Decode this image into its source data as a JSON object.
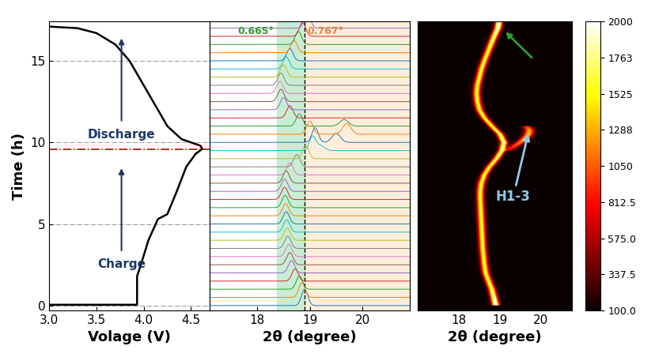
{
  "chart_data": [
    {
      "type": "line",
      "x_label": "Volage (V)",
      "y_label": "Time (h)",
      "x": [
        3.0,
        3.93,
        3.93,
        3.97,
        4.05,
        4.15,
        4.25,
        4.35,
        4.45,
        4.55,
        4.62,
        4.6,
        4.5,
        4.4,
        4.25,
        4.1,
        4.0,
        3.85,
        3.7,
        3.5,
        3.3,
        3.0
      ],
      "y": [
        0.05,
        0.05,
        1.8,
        2.5,
        4.0,
        5.3,
        5.6,
        7.0,
        8.5,
        9.3,
        9.6,
        9.8,
        10.0,
        10.2,
        11.0,
        12.5,
        13.5,
        15.0,
        16.0,
        16.7,
        17.0,
        17.1
      ],
      "color": "#000000",
      "xlim": [
        3.0,
        4.7
      ],
      "xticks": [
        3.0,
        3.5,
        4.0,
        4.5
      ],
      "ylim": [
        -0.3,
        17.4
      ],
      "yticks": [
        0,
        5,
        10,
        15
      ],
      "grid": true,
      "switch_time": 9.6,
      "annotations": [
        {
          "text": "Charge",
          "color": "#1f3864"
        },
        {
          "text": "Discharge",
          "color": "#1f3864"
        }
      ]
    },
    {
      "type": "waterfall",
      "x_label": "2θ (degree)",
      "xlim": [
        17.1,
        20.9
      ],
      "xticks": [
        18,
        19,
        20
      ],
      "ylim": [
        -0.3,
        17.4
      ],
      "tick_labels": "x",
      "reference_position": 18.9,
      "bands": [
        {
          "range": [
            18.37,
            18.9
          ],
          "color": "#c8ecd4",
          "label": "0.665°",
          "label_color": "#2ca02c"
        },
        {
          "range": [
            18.9,
            20.9
          ],
          "color": "#fdeedc",
          "label": "0.767°",
          "label_color": "#e08a3c"
        }
      ],
      "scans": {
        "time": [
          0,
          0.5,
          1,
          1.5,
          2,
          2.5,
          3,
          3.5,
          4,
          4.5,
          5,
          5.5,
          6,
          6.5,
          7,
          7.5,
          8,
          8.5,
          9,
          9.5,
          10,
          10.5,
          11,
          11.5,
          12,
          12.5,
          13,
          13.5,
          14,
          14.5,
          15,
          15.5,
          16,
          16.5,
          17
        ],
        "peak_position": [
          18.9,
          18.85,
          18.8,
          18.72,
          18.65,
          18.62,
          18.6,
          18.58,
          18.57,
          18.56,
          18.55,
          18.54,
          18.53,
          18.52,
          18.52,
          18.55,
          18.62,
          18.75,
          18.92,
          19.05,
          19.1,
          19.0,
          18.8,
          18.62,
          18.5,
          18.45,
          18.43,
          18.45,
          18.5,
          18.55,
          18.62,
          18.7,
          18.78,
          18.86,
          18.95
        ],
        "peak_intensity": [
          2000,
          1800,
          1600,
          1500,
          1500,
          1500,
          1500,
          1500,
          1500,
          1500,
          1500,
          1500,
          1500,
          1500,
          1500,
          1500,
          1500,
          1500,
          1600,
          1700,
          1800,
          1600,
          1500,
          1500,
          1500,
          1500,
          1500,
          1500,
          1500,
          1500,
          1500,
          1500,
          1600,
          1700,
          1900
        ]
      },
      "second_peak": {
        "time": [
          9.5,
          10,
          10.5,
          11
        ],
        "peak_position": [
          19.2,
          19.5,
          19.7,
          19.65
        ],
        "peak_intensity": [
          600,
          1100,
          1300,
          800
        ]
      }
    },
    {
      "type": "heatmap",
      "x_label": "2θ (degree)",
      "xlim": [
        17.0,
        20.75
      ],
      "xticks": [
        18,
        19,
        20
      ],
      "ylim": [
        -0.3,
        17.4
      ],
      "tick_labels": "x",
      "color": "hot",
      "tracks": [
        {
          "time": [
            0,
            0.5,
            1,
            1.5,
            2,
            2.5,
            3,
            3.5,
            4,
            4.5,
            5,
            5.5,
            6,
            6.5,
            7,
            7.5,
            8,
            8.5,
            9,
            9.5,
            10,
            10.5,
            11,
            11.5,
            12,
            12.5,
            13,
            13.5,
            14,
            14.5,
            15,
            15.5,
            16,
            16.5,
            17,
            17.4
          ],
          "position": [
            18.9,
            18.85,
            18.8,
            18.72,
            18.65,
            18.62,
            18.6,
            18.58,
            18.57,
            18.56,
            18.55,
            18.54,
            18.53,
            18.52,
            18.52,
            18.55,
            18.62,
            18.75,
            18.92,
            19.05,
            19.1,
            19.0,
            18.8,
            18.62,
            18.5,
            18.45,
            18.43,
            18.45,
            18.5,
            18.55,
            18.62,
            18.7,
            18.78,
            18.86,
            18.95,
            18.98
          ],
          "intensity": [
            2000,
            1800,
            1600,
            1500,
            1500,
            1500,
            1500,
            1500,
            1500,
            1500,
            1500,
            1500,
            1500,
            1500,
            1500,
            1500,
            1500,
            1500,
            1600,
            1700,
            1800,
            1600,
            1500,
            1500,
            1500,
            1500,
            1500,
            1500,
            1500,
            1500,
            1500,
            1500,
            1600,
            1700,
            1900,
            2000
          ]
        },
        {
          "time": [
            9.5,
            9.75,
            10,
            10.25,
            10.5,
            10.75,
            11
          ],
          "position": [
            19.2,
            19.35,
            19.5,
            19.62,
            19.7,
            19.72,
            19.65
          ],
          "intensity": [
            600,
            900,
            1100,
            1250,
            1300,
            1200,
            800
          ]
        }
      ],
      "colorbar": {
        "range": [
          100,
          2000
        ],
        "ticks": [
          {
            "value": 100,
            "label": "100.0"
          },
          337.5,
          {
            "value": 575,
            "label": "575.0"
          },
          812.5,
          1050,
          1288,
          1525,
          1763,
          2000
        ]
      },
      "annotations": [
        {
          "text": "H1-3",
          "color": "#8ecae6"
        },
        {
          "text": "",
          "color": "#2ca02c"
        }
      ]
    }
  ]
}
